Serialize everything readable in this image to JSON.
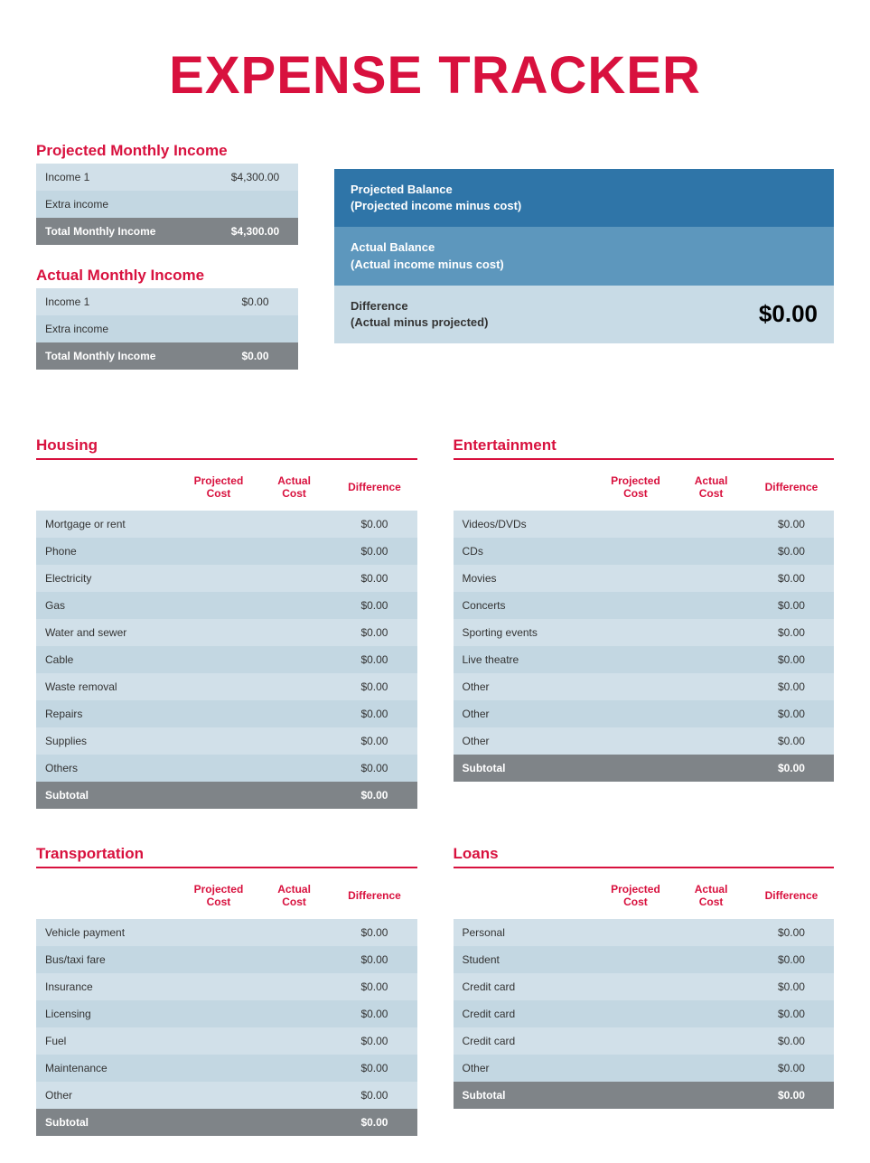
{
  "title": "EXPENSE TRACKER",
  "colors": {
    "accent": "#d8113e",
    "row_light": "#d1e0e9",
    "row_dark": "#c3d7e2",
    "total_row": "#7f8488",
    "balance_proj": "#2f75a8",
    "balance_actual": "#5d97bd",
    "balance_diff": "#c8dbe6",
    "background": "#ffffff"
  },
  "column_headers": {
    "projected": "Projected Cost",
    "actual": "Actual Cost",
    "difference": "Difference"
  },
  "projected_income": {
    "heading": "Projected Monthly Income",
    "rows": [
      {
        "label": "Income 1",
        "value": "$4,300.00"
      },
      {
        "label": "Extra income",
        "value": ""
      }
    ],
    "total_label": "Total Monthly Income",
    "total_value": "$4,300.00"
  },
  "actual_income": {
    "heading": "Actual Monthly Income",
    "rows": [
      {
        "label": "Income 1",
        "value": "$0.00"
      },
      {
        "label": "Extra income",
        "value": ""
      }
    ],
    "total_label": "Total Monthly Income",
    "total_value": "$0.00"
  },
  "balance": {
    "projected": {
      "line1": "Projected Balance",
      "line2": "(Projected income minus cost)",
      "value": ""
    },
    "actual": {
      "line1": "Actual Balance",
      "line2": "(Actual income minus cost)",
      "value": ""
    },
    "difference": {
      "line1": "Difference",
      "line2": "(Actual minus projected)",
      "value": "$0.00"
    }
  },
  "subtotal_label": "Subtotal",
  "categories": [
    {
      "name": "Housing",
      "rows": [
        {
          "label": "Mortgage or rent",
          "proj": "",
          "act": "",
          "diff": "$0.00"
        },
        {
          "label": "Phone",
          "proj": "",
          "act": "",
          "diff": "$0.00"
        },
        {
          "label": "Electricity",
          "proj": "",
          "act": "",
          "diff": "$0.00"
        },
        {
          "label": "Gas",
          "proj": "",
          "act": "",
          "diff": "$0.00"
        },
        {
          "label": "Water and sewer",
          "proj": "",
          "act": "",
          "diff": "$0.00"
        },
        {
          "label": "Cable",
          "proj": "",
          "act": "",
          "diff": "$0.00"
        },
        {
          "label": "Waste removal",
          "proj": "",
          "act": "",
          "diff": "$0.00"
        },
        {
          "label": "Repairs",
          "proj": "",
          "act": "",
          "diff": "$0.00"
        },
        {
          "label": "Supplies",
          "proj": "",
          "act": "",
          "diff": "$0.00"
        },
        {
          "label": "Others",
          "proj": "",
          "act": "",
          "diff": "$0.00"
        }
      ],
      "subtotal": {
        "proj": "",
        "act": "",
        "diff": "$0.00"
      }
    },
    {
      "name": "Entertainment",
      "rows": [
        {
          "label": "Videos/DVDs",
          "proj": "",
          "act": "",
          "diff": "$0.00"
        },
        {
          "label": "CDs",
          "proj": "",
          "act": "",
          "diff": "$0.00"
        },
        {
          "label": "Movies",
          "proj": "",
          "act": "",
          "diff": "$0.00"
        },
        {
          "label": "Concerts",
          "proj": "",
          "act": "",
          "diff": "$0.00"
        },
        {
          "label": "Sporting events",
          "proj": "",
          "act": "",
          "diff": "$0.00"
        },
        {
          "label": "Live theatre",
          "proj": "",
          "act": "",
          "diff": "$0.00"
        },
        {
          "label": "Other",
          "proj": "",
          "act": "",
          "diff": "$0.00"
        },
        {
          "label": "Other",
          "proj": "",
          "act": "",
          "diff": "$0.00"
        },
        {
          "label": "Other",
          "proj": "",
          "act": "",
          "diff": "$0.00"
        }
      ],
      "subtotal": {
        "proj": "",
        "act": "",
        "diff": "$0.00"
      }
    },
    {
      "name": "Transportation",
      "rows": [
        {
          "label": "Vehicle payment",
          "proj": "",
          "act": "",
          "diff": "$0.00"
        },
        {
          "label": "Bus/taxi fare",
          "proj": "",
          "act": "",
          "diff": "$0.00"
        },
        {
          "label": "Insurance",
          "proj": "",
          "act": "",
          "diff": "$0.00"
        },
        {
          "label": "Licensing",
          "proj": "",
          "act": "",
          "diff": "$0.00"
        },
        {
          "label": "Fuel",
          "proj": "",
          "act": "",
          "diff": "$0.00"
        },
        {
          "label": "Maintenance",
          "proj": "",
          "act": "",
          "diff": "$0.00"
        },
        {
          "label": "Other",
          "proj": "",
          "act": "",
          "diff": "$0.00"
        }
      ],
      "subtotal": {
        "proj": "",
        "act": "",
        "diff": "$0.00"
      }
    },
    {
      "name": "Loans",
      "rows": [
        {
          "label": "Personal",
          "proj": "",
          "act": "",
          "diff": "$0.00"
        },
        {
          "label": "Student",
          "proj": "",
          "act": "",
          "diff": "$0.00"
        },
        {
          "label": "Credit card",
          "proj": "",
          "act": "",
          "diff": "$0.00"
        },
        {
          "label": "Credit card",
          "proj": "",
          "act": "",
          "diff": "$0.00"
        },
        {
          "label": "Credit card",
          "proj": "",
          "act": "",
          "diff": "$0.00"
        },
        {
          "label": "Other",
          "proj": "",
          "act": "",
          "diff": "$0.00"
        }
      ],
      "subtotal": {
        "proj": "",
        "act": "",
        "diff": "$0.00"
      }
    }
  ]
}
